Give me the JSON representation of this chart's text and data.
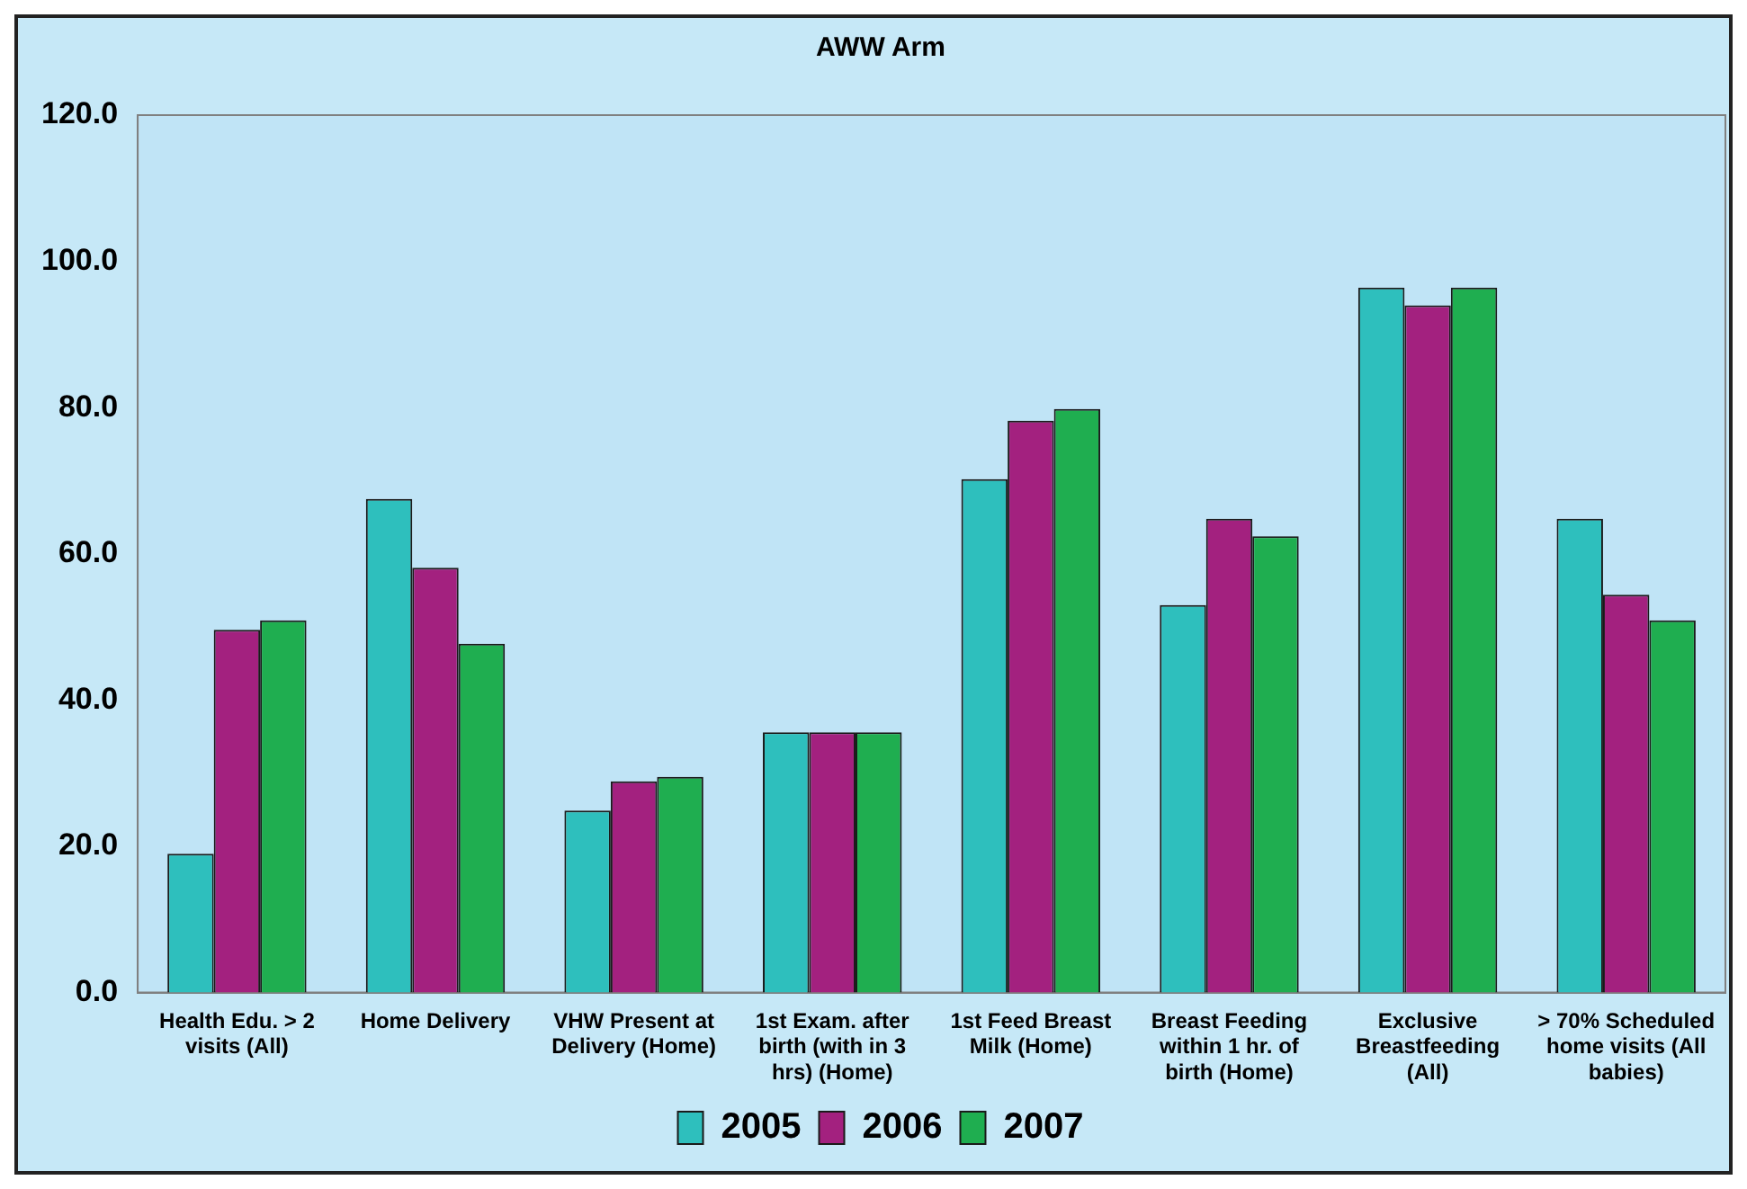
{
  "chart_data": {
    "type": "bar",
    "title": "AWW Arm",
    "categories": [
      "Health Edu. > 2 visits (All)",
      "Home Delivery",
      "VHW Present at Delivery (Home)",
      "1st Exam. after birth (with in 3 hrs) (Home)",
      "1st Feed Breast Milk (Home)",
      "Breast Feeding within 1 hr. of birth (Home)",
      "Exclusive Breastfeeding (All)",
      "> 70% Scheduled home visits (All babies)"
    ],
    "series": [
      {
        "name": "2005",
        "color": "#2ebfbd",
        "values": [
          19.0,
          67.5,
          24.9,
          35.6,
          70.2,
          53.0,
          96.4,
          64.8
        ]
      },
      {
        "name": "2006",
        "color": "#a3217f",
        "values": [
          49.6,
          58.1,
          28.9,
          35.6,
          78.2,
          64.8,
          94.0,
          54.4
        ]
      },
      {
        "name": "2007",
        "color": "#1fae50",
        "values": [
          50.9,
          47.7,
          29.5,
          35.6,
          79.8,
          62.4,
          96.4,
          50.9
        ]
      }
    ],
    "ylim": [
      0,
      120
    ],
    "yticks": [
      {
        "value": 0,
        "label": "0.0"
      },
      {
        "value": 20,
        "label": "20.0"
      },
      {
        "value": 40,
        "label": "40.0"
      },
      {
        "value": 60,
        "label": "60.0"
      },
      {
        "value": 80,
        "label": "80.0"
      },
      {
        "value": 100,
        "label": "100.0"
      },
      {
        "value": 120,
        "label": "120.0"
      }
    ],
    "grid": false,
    "legend": "bottom"
  }
}
